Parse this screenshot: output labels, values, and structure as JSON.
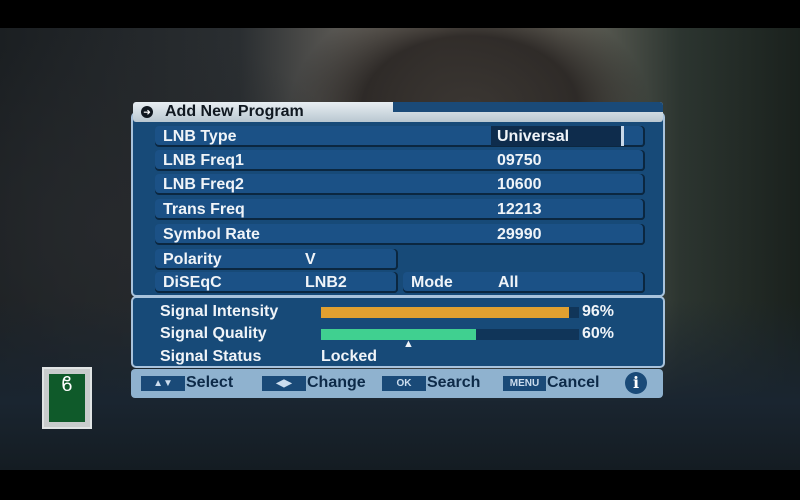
{
  "dialog": {
    "title": "Add New Program"
  },
  "fields": [
    {
      "label": "LNB Type",
      "value": "Universal"
    },
    {
      "label": "LNB Freq1",
      "value": "09750"
    },
    {
      "label": "LNB Freq2",
      "value": "10600"
    },
    {
      "label": "Trans Freq",
      "value": "12213"
    },
    {
      "label": "Symbol Rate",
      "value": "29990"
    }
  ],
  "polarity": {
    "label": "Polarity",
    "value": "V"
  },
  "diseqc": {
    "label": "DiSEqC",
    "value": "LNB2"
  },
  "mode": {
    "label": "Mode",
    "value": "All"
  },
  "signal": {
    "intensity": {
      "label": "Signal Intensity",
      "percent": 96,
      "text": "96%",
      "color": "#e0a030"
    },
    "quality": {
      "label": "Signal Quality",
      "percent": 60,
      "text": "60%",
      "color": "#40d090"
    },
    "status": {
      "label": "Signal Status",
      "value": "Locked"
    }
  },
  "footer": {
    "select_key": "▲▼",
    "select": "Select",
    "change_key": "◀▶",
    "change": "Change",
    "ok_key": "OK",
    "search": "Search",
    "menu_key": "MENU",
    "cancel": "Cancel",
    "info": "i"
  }
}
